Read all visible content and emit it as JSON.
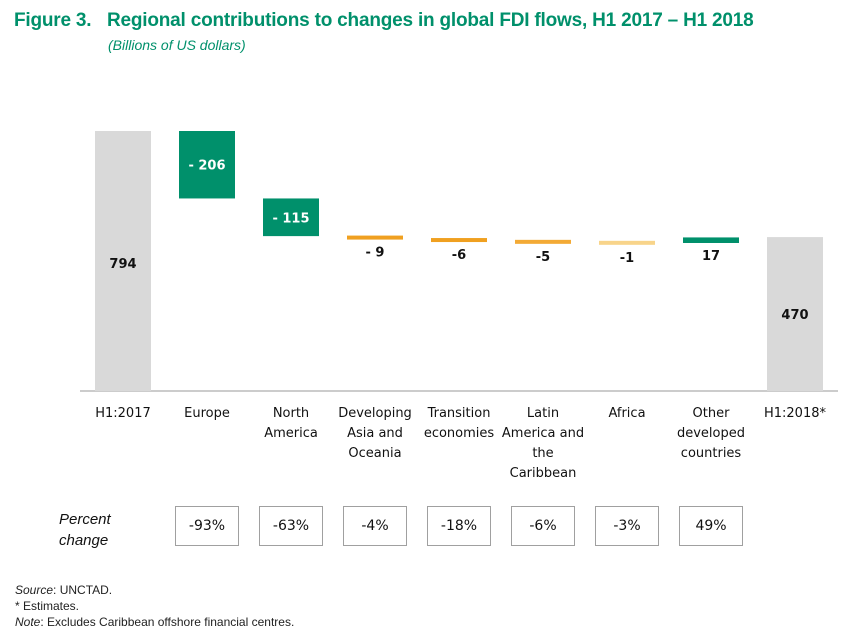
{
  "figure": {
    "number": "Figure 3.",
    "title": "Regional contributions to changes in global FDI flows, H1 2017 – H1 2018",
    "subtitle": "(Billions of US dollars)"
  },
  "chart_data": {
    "type": "waterfall",
    "title": "Regional contributions to changes in global FDI flows, H1 2017 – H1 2018",
    "ylabel": "Billions of US dollars",
    "ylim": [
      0,
      794
    ],
    "categories": [
      [
        "H1:2017"
      ],
      [
        "Europe"
      ],
      [
        "North",
        "America"
      ],
      [
        "Developing",
        "Asia and",
        "Oceania"
      ],
      [
        "Transition",
        "economies"
      ],
      [
        "Latin",
        "America and",
        "the",
        "Caribbean"
      ],
      [
        "Africa"
      ],
      [
        "Other",
        "developed",
        "countries"
      ],
      [
        "H1:2018*"
      ]
    ],
    "values": [
      794,
      -206,
      -115,
      -9,
      -6,
      -5,
      -1,
      17,
      470
    ],
    "value_labels": [
      "794",
      "- 206",
      "- 115",
      "- 9",
      "-6",
      "-5",
      "-1",
      "17",
      "470"
    ],
    "kinds": [
      "total",
      "delta",
      "delta",
      "delta",
      "delta",
      "delta",
      "delta",
      "delta",
      "total"
    ],
    "colors": {
      "total": "#d9d9d9",
      "large_change": "#00906b",
      "small_negative": [
        "#f0a020",
        "#f0a020",
        "#f3aa35",
        "#f8d48a"
      ],
      "positive": "#00906b",
      "axis": "#999999"
    }
  },
  "percent_change": {
    "title_line1": "Percent",
    "title_line2": "change",
    "values": [
      "-93%",
      "-63%",
      "-4%",
      "-18%",
      "-6%",
      "-3%",
      "49%"
    ]
  },
  "notes": {
    "source_label": "Source",
    "source_text": ": UNCTAD.",
    "estimates": "* Estimates.",
    "note_label": "Note",
    "note_text": ": Excludes Caribbean offshore financial centres."
  }
}
